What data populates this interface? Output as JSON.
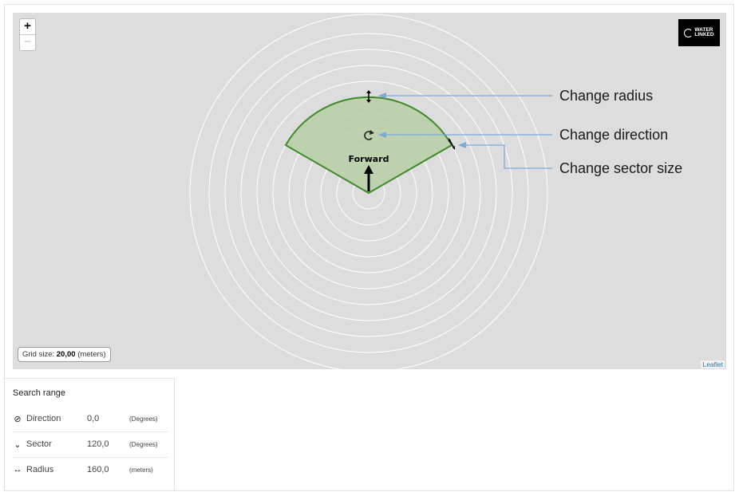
{
  "map": {
    "zoom_in": "+",
    "zoom_out": "−",
    "logo_line1": "WATER",
    "logo_line2": "LINKED",
    "grid_size_prefix": "Grid size:",
    "grid_size_value": "20,00",
    "grid_size_unit": "(meters)",
    "attribution": "Leaflet",
    "forward_label": "Forward",
    "colors": {
      "background": "#dddddd",
      "rings": "#ffffff",
      "sector_fill": "#b7cfa6",
      "sector_stroke": "#3f8a2b",
      "arrow": "#7aabdb"
    }
  },
  "annotations": {
    "change_radius": "Change radius",
    "change_direction": "Change direction",
    "change_sector_size": "Change sector size"
  },
  "search_range": {
    "title": "Search range",
    "rows": [
      {
        "icon": "⊘",
        "label": "Direction",
        "value": "0,0",
        "unit": "(Degrees)"
      },
      {
        "icon": "⌄",
        "label": "Sector",
        "value": "120,0",
        "unit": "(Degrees)"
      },
      {
        "icon": "↔",
        "label": "Radius",
        "value": "160,0",
        "unit": "(meters)"
      }
    ]
  }
}
